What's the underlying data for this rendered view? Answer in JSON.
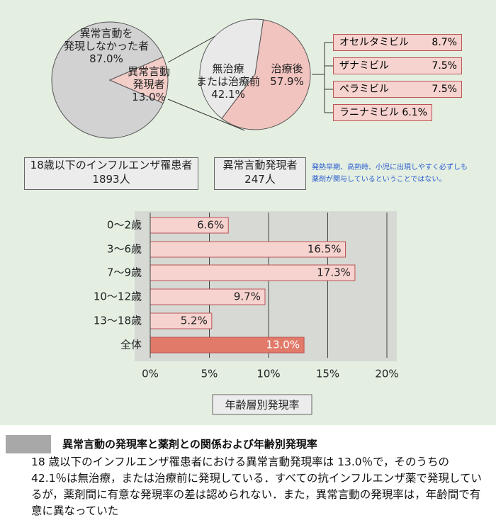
{
  "chart_data": [
    {
      "type": "pie",
      "categories": [
        "異常言動を\n発現しなかった者",
        "異常言動\n発現者"
      ],
      "values": [
        87.0,
        13.0
      ],
      "value_labels": [
        "87.0%",
        "13.0%"
      ],
      "colors": [
        "#d2d2d2",
        "#f3cdc8"
      ]
    },
    {
      "type": "pie",
      "categories": [
        "無治療\nまたは治療前",
        "治療後"
      ],
      "values": [
        42.1,
        57.9
      ],
      "value_labels": [
        "42.1%",
        "57.9%"
      ],
      "colors": [
        "#e9e9e9",
        "#f2c4bf"
      ]
    },
    {
      "type": "bar",
      "orientation": "horizontal",
      "categories": [
        "0〜2歳",
        "3〜6歳",
        "7〜9歳",
        "10〜12歳",
        "13〜18歳",
        "全体"
      ],
      "values": [
        6.6,
        16.5,
        17.3,
        9.7,
        5.2,
        13.0
      ],
      "value_labels": [
        "6.6%",
        "16.5%",
        "17.3%",
        "9.7%",
        "5.2%",
        "13.0%"
      ],
      "colors": [
        "#f6d3cf",
        "#f6d3cf",
        "#f6d3cf",
        "#f6d3cf",
        "#f6d3cf",
        "#e27a6a"
      ],
      "xlim": [
        0,
        20
      ],
      "xticks": [
        {
          "value": 0,
          "label": "0%"
        },
        {
          "value": 5,
          "label": "5%"
        },
        {
          "value": 10,
          "label": "10%"
        },
        {
          "value": 15,
          "label": "15%"
        },
        {
          "value": 20,
          "label": "20%"
        }
      ],
      "xlabel": "年齢層別発現率",
      "grid": true
    }
  ],
  "drugs": [
    {
      "name": "オセルタミビル",
      "rate": "8.7%"
    },
    {
      "name": "ザナミビル",
      "rate": "7.5%"
    },
    {
      "name": "ペラミビル",
      "rate": "7.5%"
    },
    {
      "name": "ラニナミビル",
      "rate": "6.1%"
    }
  ],
  "boxes": [
    "18歳以下のインフルエンザ罹患者\n1893人",
    "異常言動発現者\n247人"
  ],
  "note": "発熱早期、高熱時、小児に出現しやすく必ずしも\n薬剤が関与しているということではない。",
  "caption": {
    "title": "異常言動の発現率と薬剤との関係および年齢別発現率",
    "body": "18 歳以下のインフルエンザ罹患者における異常言動発現率は 13.0％で，そのうちの 42.1％は無治療，または治療前に発現している．すべての抗インフルエンザ薬で発現しているが，薬剤間に有意な発現率の差は認められない．また，異常言動の発現率は，年齢間で有意に異なっていた"
  }
}
